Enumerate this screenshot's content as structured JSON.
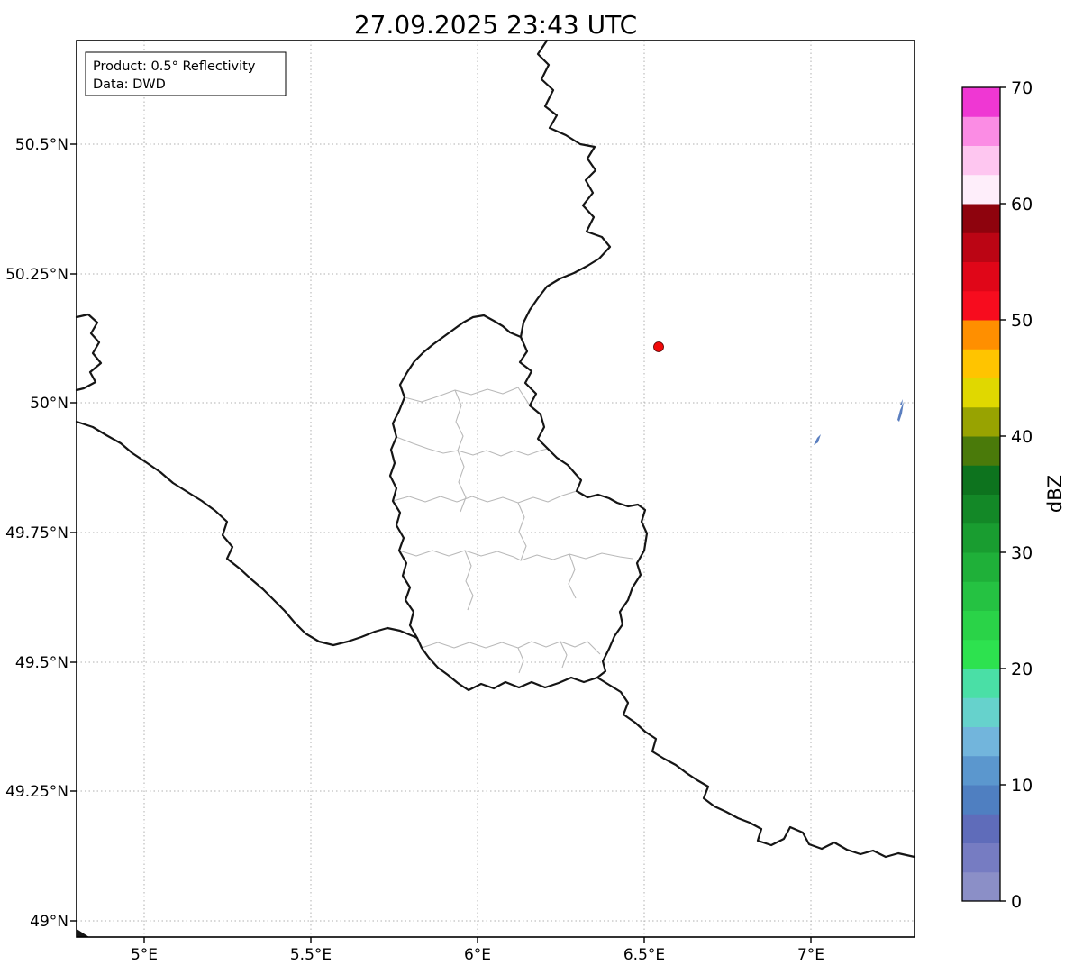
{
  "title": "27.09.2025 23:43 UTC",
  "info_box": {
    "product_line": "Product: 0.5° Reflectivity",
    "data_line": "Data: DWD"
  },
  "axes": {
    "x_tick_labels": [
      "5°E",
      "5.5°E",
      "6°E",
      "6.5°E",
      "7°E"
    ],
    "y_tick_labels": [
      "50.5°N",
      "50.25°N",
      "50°N",
      "49.75°N",
      "49.5°N",
      "49.25°N",
      "49°N"
    ]
  },
  "colorbar": {
    "label": "dBZ",
    "tick_labels": [
      "0",
      "10",
      "20",
      "30",
      "40",
      "50",
      "60",
      "70"
    ],
    "step_dbz": 2.5,
    "segment_colors_bottom_to_top": [
      "#8b8fc7",
      "#767cc2",
      "#5f6cba",
      "#4f7fc1",
      "#5b97ce",
      "#72b5dc",
      "#66d2cc",
      "#4adfa6",
      "#2de24f",
      "#2ad348",
      "#25c242",
      "#1fb039",
      "#199d30",
      "#138827",
      "#0d731e",
      "#4a7a0a",
      "#98a301",
      "#e0d800",
      "#ffc400",
      "#ff8f00",
      "#f70c1e",
      "#e00618",
      "#bb0514",
      "#8e030d",
      "#feeefa",
      "#fec6f0",
      "#fb8ce4",
      "#ef37d3"
    ]
  },
  "map": {
    "border_color": "#151515",
    "canton_border_color": "#b9b9b9",
    "grid_color": "#b0b0b0",
    "radar_site_marker": {
      "color": "#f00a0a",
      "approx_position": "6.54°E, 50.11°N"
    },
    "echo_color": "#5b7fc0"
  }
}
